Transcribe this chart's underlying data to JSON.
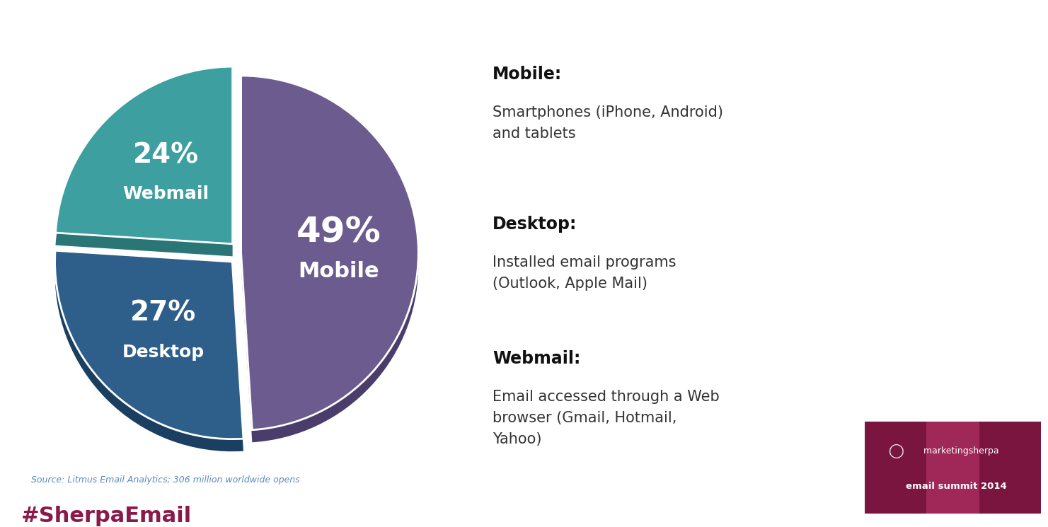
{
  "slices": [
    49,
    27,
    24
  ],
  "labels": [
    "Mobile",
    "Desktop",
    "Webmail"
  ],
  "colors": [
    "#6b5b8e",
    "#2e5f8a",
    "#3d9fa0"
  ],
  "shadow_colors": [
    "#4a3d6b",
    "#1b3f60",
    "#2a7575"
  ],
  "explode": [
    0.0,
    0.07,
    0.07
  ],
  "startangle": 90,
  "background_color": "#ffffff",
  "source_text": "Source: Litmus Email Analytics; 306 million worldwide opens",
  "source_color": "#5a8abf",
  "hashtag_text": "#SherpaEmail",
  "hashtag_color": "#8b1a4a",
  "right_title_mobile": "Mobile:",
  "right_desc_mobile": "Smartphones (iPhone, Android)\nand tablets",
  "right_title_desktop": "Desktop:",
  "right_desc_desktop": "Installed email programs\n(Outlook, Apple Mail)",
  "right_title_webmail": "Webmail:",
  "right_desc_webmail": "Email accessed through a Web\nbrowser (Gmail, Hotmail,\nYahoo)",
  "logo_bg_color": "#8b1a4a",
  "logo_bg_light": "#a03060"
}
